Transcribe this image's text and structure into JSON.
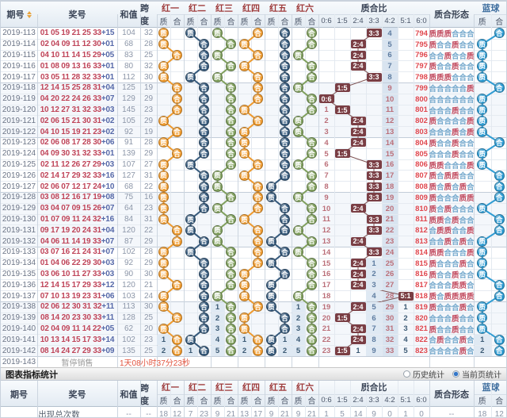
{
  "header": {
    "period": "期号",
    "numbers": "奖号",
    "sum": "和值",
    "span": "跨度",
    "red_groups": [
      "红一",
      "红二",
      "红三",
      "红四",
      "红五",
      "红六"
    ],
    "prime": "质",
    "composite": "合",
    "ratio_group": "质合比",
    "ratio_cols": [
      "0:6",
      "1:5",
      "2:4",
      "3:3",
      "4:2",
      "5:1",
      "6:0"
    ],
    "pattern_group": "质合形态",
    "blue_group": "蓝球"
  },
  "rows": [
    {
      "period": "2019-113",
      "reds": [
        "01",
        "05",
        "19",
        "21",
        "25",
        "33"
      ],
      "bonus": "+15",
      "sum": "104",
      "span": "32",
      "pc": "PPPCCC",
      "blue_pc": "C",
      "ratio": "3:3",
      "ratio_cells": [
        "",
        "",
        "",
        "B",
        "4",
        "",
        "794"
      ]
    },
    {
      "period": "2019-114",
      "reds": [
        "02",
        "04",
        "09",
        "11",
        "12",
        "30"
      ],
      "bonus": "+01",
      "sum": "68",
      "span": "28",
      "pc": "PCCPCC",
      "blue_pc": "P",
      "ratio": "2:4",
      "ratio_cells": [
        "",
        "",
        "B",
        "",
        "5",
        "",
        "795"
      ]
    },
    {
      "period": "2019-115",
      "reds": [
        "04",
        "10",
        "11",
        "14",
        "15",
        "29"
      ],
      "bonus": "+05",
      "sum": "83",
      "span": "25",
      "pc": "CCPCCP",
      "blue_pc": "P",
      "ratio": "2:4",
      "ratio_cells": [
        "",
        "",
        "B",
        "",
        "6",
        "",
        "796"
      ]
    },
    {
      "period": "2019-116",
      "reds": [
        "01",
        "08",
        "09",
        "13",
        "16",
        "33"
      ],
      "bonus": "+01",
      "sum": "80",
      "span": "32",
      "pc": "PCCPCC",
      "blue_pc": "P",
      "ratio": "2:4",
      "ratio_cells": [
        "",
        "",
        "B",
        "",
        "7",
        "",
        "797"
      ]
    },
    {
      "period": "2019-117",
      "reds": [
        "03",
        "05",
        "11",
        "28",
        "32",
        "33"
      ],
      "bonus": "+01",
      "sum": "112",
      "span": "30",
      "pc": "PPPCCC",
      "blue_pc": "P",
      "ratio": "3:3",
      "ratio_cells": [
        "",
        "",
        "",
        "B",
        "8",
        "",
        "798"
      ]
    },
    {
      "period": "2019-118",
      "reds": [
        "12",
        "14",
        "15",
        "25",
        "28",
        "31"
      ],
      "bonus": "+04",
      "sum": "125",
      "span": "19",
      "pc": "CCCCCP",
      "blue_pc": "C",
      "ratio": "1:5",
      "ratio_cells": [
        "",
        "B",
        "",
        "",
        "9",
        "",
        "799"
      ]
    },
    {
      "period": "2019-119",
      "reds": [
        "04",
        "20",
        "22",
        "24",
        "26",
        "33"
      ],
      "bonus": "+07",
      "sum": "129",
      "span": "29",
      "pc": "CCCCCC",
      "blue_pc": "P",
      "ratio": "0:6",
      "ratio_cells": [
        "B",
        "",
        "",
        "",
        "10",
        "",
        "800"
      ]
    },
    {
      "period": "2019-120",
      "reds": [
        "10",
        "12",
        "27",
        "31",
        "32",
        "33"
      ],
      "bonus": "+03",
      "sum": "145",
      "span": "23",
      "pc": "CCCPCC",
      "blue_pc": "P",
      "ratio": "1:5",
      "ratio_cells": [
        "1",
        "B",
        "",
        "",
        "11",
        "",
        "801"
      ]
    },
    {
      "period": "2019-121",
      "reds": [
        "02",
        "06",
        "15",
        "21",
        "30",
        "31"
      ],
      "bonus": "+02",
      "sum": "105",
      "span": "29",
      "pc": "PCCCCP",
      "blue_pc": "P",
      "ratio": "2:4",
      "ratio_cells": [
        "2",
        "",
        "B",
        "",
        "12",
        "",
        "802"
      ]
    },
    {
      "period": "2019-122",
      "reds": [
        "04",
        "10",
        "15",
        "19",
        "21",
        "23"
      ],
      "bonus": "+02",
      "sum": "92",
      "span": "19",
      "pc": "CCCPCP",
      "blue_pc": "P",
      "ratio": "2:4",
      "ratio_cells": [
        "3",
        "",
        "B",
        "",
        "13",
        "",
        "803"
      ]
    },
    {
      "period": "2019-123",
      "reds": [
        "02",
        "06",
        "08",
        "17",
        "28",
        "30"
      ],
      "bonus": "+06",
      "sum": "91",
      "span": "28",
      "pc": "PCCPCC",
      "blue_pc": "C",
      "ratio": "2:4",
      "ratio_cells": [
        "4",
        "",
        "B",
        "",
        "14",
        "",
        "804"
      ]
    },
    {
      "period": "2019-124",
      "reds": [
        "04",
        "09",
        "30",
        "31",
        "32",
        "33"
      ],
      "bonus": "+01",
      "sum": "139",
      "span": "29",
      "pc": "CCCPCC",
      "blue_pc": "P",
      "ratio": "1:5",
      "ratio_cells": [
        "5",
        "B",
        "",
        "",
        "15",
        "",
        "805"
      ]
    },
    {
      "period": "2019-125",
      "reds": [
        "02",
        "11",
        "12",
        "26",
        "27",
        "29"
      ],
      "bonus": "+03",
      "sum": "107",
      "span": "27",
      "pc": "PPCCCP",
      "blue_pc": "P",
      "ratio": "3:3",
      "ratio_cells": [
        "6",
        "",
        "",
        "B",
        "16",
        "",
        "806"
      ]
    },
    {
      "period": "2019-126",
      "reds": [
        "02",
        "14",
        "17",
        "29",
        "32",
        "33"
      ],
      "bonus": "+16",
      "sum": "127",
      "span": "31",
      "pc": "PCPPCC",
      "blue_pc": "C",
      "ratio": "3:3",
      "ratio_cells": [
        "7",
        "",
        "",
        "B",
        "17",
        "",
        "807"
      ]
    },
    {
      "period": "2019-127",
      "reds": [
        "02",
        "06",
        "07",
        "12",
        "17",
        "24"
      ],
      "bonus": "+10",
      "sum": "68",
      "span": "22",
      "pc": "PCPCPC",
      "blue_pc": "C",
      "ratio": "3:3",
      "ratio_cells": [
        "8",
        "",
        "",
        "B",
        "18",
        "",
        "808"
      ]
    },
    {
      "period": "2019-128",
      "reds": [
        "03",
        "08",
        "12",
        "16",
        "17",
        "19"
      ],
      "bonus": "+08",
      "sum": "75",
      "span": "16",
      "pc": "PCCCPP",
      "blue_pc": "C",
      "ratio": "3:3",
      "ratio_cells": [
        "9",
        "",
        "",
        "B",
        "19",
        "",
        "809"
      ]
    },
    {
      "period": "2019-129",
      "reds": [
        "03",
        "04",
        "07",
        "09",
        "15",
        "26"
      ],
      "bonus": "+07",
      "sum": "64",
      "span": "23",
      "pc": "PCPCCC",
      "blue_pc": "P",
      "ratio": "2:4",
      "ratio_cells": [
        "10",
        "",
        "B",
        "",
        "20",
        "",
        "810"
      ]
    },
    {
      "period": "2019-130",
      "reds": [
        "01",
        "07",
        "09",
        "11",
        "24",
        "32"
      ],
      "bonus": "+16",
      "sum": "84",
      "span": "31",
      "pc": "PPCPCC",
      "blue_pc": "C",
      "ratio": "3:3",
      "ratio_cells": [
        "11",
        "",
        "",
        "B",
        "21",
        "",
        "811"
      ]
    },
    {
      "period": "2019-131",
      "reds": [
        "09",
        "17",
        "19",
        "20",
        "24",
        "31"
      ],
      "bonus": "+04",
      "sum": "120",
      "span": "22",
      "pc": "CPPCCP",
      "blue_pc": "C",
      "ratio": "3:3",
      "ratio_cells": [
        "12",
        "",
        "",
        "B",
        "22",
        "",
        "812"
      ]
    },
    {
      "period": "2019-132",
      "reds": [
        "04",
        "06",
        "11",
        "14",
        "19",
        "33"
      ],
      "bonus": "+07",
      "sum": "87",
      "span": "29",
      "pc": "CCPCPC",
      "blue_pc": "P",
      "ratio": "2:4",
      "ratio_cells": [
        "13",
        "",
        "B",
        "",
        "23",
        "",
        "813"
      ]
    },
    {
      "period": "2019-133",
      "reds": [
        "03",
        "07",
        "16",
        "21",
        "24",
        "31"
      ],
      "bonus": "+07",
      "sum": "102",
      "span": "28",
      "pc": "PPCCCP",
      "blue_pc": "P",
      "ratio": "3:3",
      "ratio_cells": [
        "14",
        "",
        "",
        "B",
        "24",
        "",
        "814"
      ]
    },
    {
      "period": "2019-134",
      "reds": [
        "01",
        "04",
        "06",
        "22",
        "29",
        "30"
      ],
      "bonus": "+03",
      "sum": "92",
      "span": "29",
      "pc": "PCCCPC",
      "blue_pc": "P",
      "ratio": "2:4",
      "ratio_cells": [
        "15",
        "",
        "B",
        "1",
        "25",
        "",
        "815"
      ]
    },
    {
      "period": "2019-135",
      "reds": [
        "03",
        "06",
        "10",
        "11",
        "27",
        "33"
      ],
      "bonus": "+03",
      "sum": "90",
      "span": "30",
      "pc": "PCCPCC",
      "blue_pc": "P",
      "ratio": "2:4",
      "ratio_cells": [
        "16",
        "",
        "B",
        "2",
        "26",
        "",
        "816"
      ]
    },
    {
      "period": "2019-136",
      "reds": [
        "12",
        "14",
        "15",
        "17",
        "29",
        "33"
      ],
      "bonus": "+12",
      "sum": "120",
      "span": "21",
      "pc": "CCCPPC",
      "blue_pc": "C",
      "ratio": "2:4",
      "ratio_cells": [
        "17",
        "",
        "B",
        "3",
        "27",
        "",
        "817"
      ]
    },
    {
      "period": "2019-137",
      "reds": [
        "07",
        "10",
        "13",
        "19",
        "23",
        "31"
      ],
      "bonus": "+06",
      "sum": "103",
      "span": "24",
      "pc": "PCPPPP",
      "blue_pc": "C",
      "ratio": "5:1",
      "ratio_cells": [
        "18",
        "",
        "",
        "4",
        "28",
        "B",
        "818"
      ]
    },
    {
      "period": "2019-138",
      "reds": [
        "02",
        "06",
        "12",
        "30",
        "31",
        "32"
      ],
      "bonus": "+11",
      "sum": "113",
      "span": "30",
      "pc": "PCCCPC",
      "blue_pc": "P",
      "ratio": "2:4",
      "ratio_cells": [
        "19",
        "",
        "B",
        "5",
        "29",
        "1",
        "819"
      ],
      "red_miss": [
        "",
        "",
        "",
        "",
        "1",
        "",
        "",
        "",
        "",
        "",
        "1",
        ""
      ]
    },
    {
      "period": "2019-139",
      "reds": [
        "08",
        "14",
        "20",
        "23",
        "30",
        "33"
      ],
      "bonus": "+11",
      "sum": "128",
      "span": "25",
      "pc": "CCCPCC",
      "blue_pc": "P",
      "ratio": "1:5",
      "ratio_cells": [
        "20",
        "B",
        "",
        "6",
        "30",
        "2",
        "820"
      ],
      "red_miss": [
        "",
        "",
        "",
        "",
        "2",
        "",
        "",
        "",
        "",
        "",
        "2",
        ""
      ]
    },
    {
      "period": "2019-140",
      "reds": [
        "02",
        "04",
        "09",
        "11",
        "14",
        "22"
      ],
      "bonus": "+05",
      "sum": "62",
      "span": "20",
      "pc": "PCCPCC",
      "blue_pc": "P",
      "ratio": "2:4",
      "ratio_cells": [
        "21",
        "",
        "B",
        "7",
        "31",
        "3",
        "821"
      ],
      "red_miss": [
        "",
        "",
        "",
        "",
        "3",
        "",
        "",
        "",
        "",
        "",
        "3",
        ""
      ]
    },
    {
      "period": "2019-141",
      "reds": [
        "10",
        "13",
        "14",
        "15",
        "17",
        "33"
      ],
      "bonus": "+14",
      "sum": "102",
      "span": "23",
      "pc": "CPCCPC",
      "blue_pc": "C",
      "ratio": "2:4",
      "ratio_cells": [
        "22",
        "",
        "B",
        "8",
        "32",
        "4",
        "822"
      ],
      "red_miss": [
        "1",
        "",
        "",
        "",
        "4",
        "",
        "1",
        "",
        "",
        "1",
        "4",
        ""
      ],
      "blue_miss": [
        "1",
        ""
      ]
    },
    {
      "period": "2019-142",
      "reds": [
        "08",
        "14",
        "24",
        "27",
        "29",
        "33"
      ],
      "bonus": "+09",
      "sum": "135",
      "span": "25",
      "pc": "CCCCPC",
      "blue_pc": "C",
      "ratio": "1:5",
      "ratio_cells": [
        "23",
        "B",
        "1",
        "9",
        "33",
        "5",
        "823"
      ],
      "red_miss": [
        "2",
        "",
        "1",
        "",
        "5",
        "",
        "2",
        "",
        "",
        "2",
        "5",
        ""
      ],
      "blue_miss": [
        "2",
        ""
      ]
    }
  ],
  "pause_row": {
    "period": "2019-143",
    "notice": "暂停销售",
    "countdown": "1天08小时37分23秒"
  },
  "stats": {
    "title": "图表指标统计",
    "radio_history": "历史统计",
    "radio_current": "当前页统计",
    "radio_selected": "current",
    "row_label": "出现总次数",
    "sum": "--",
    "span": "--",
    "reds": [
      [
        "18",
        "12"
      ],
      [
        "7",
        "23"
      ],
      [
        "9",
        "21"
      ],
      [
        "13",
        "17"
      ],
      [
        "9",
        "21"
      ],
      [
        "9",
        "21"
      ]
    ],
    "ratio": [
      "1",
      "5",
      "14",
      "9",
      "0",
      "1",
      "0"
    ],
    "pattern": "--",
    "blue": [
      "18",
      "12"
    ]
  },
  "colors": {
    "red_columns": [
      "#ef9a2d",
      "#35597b",
      "#80a05d",
      "#ef9a2d",
      "#35597b",
      "#80a05d"
    ],
    "blue_ball": "#2f9cd3",
    "badge": "#7a3e44",
    "badge_line": "#7d5050",
    "prime_text": "#c14a5e",
    "composite_text": "#74a8cc",
    "numbers_text": "#bf4459",
    "bonus_text": "#5568a8",
    "countdown_text": "#e2543f",
    "miss_dark": "#3c5a74",
    "miss_salmon": "#bb6f79",
    "miss_steel": "#5e7ca0",
    "miss_red": "#e0474e",
    "highlight_band": "#d9e4f0",
    "miss_cell_bg": "#dfe9f3"
  }
}
